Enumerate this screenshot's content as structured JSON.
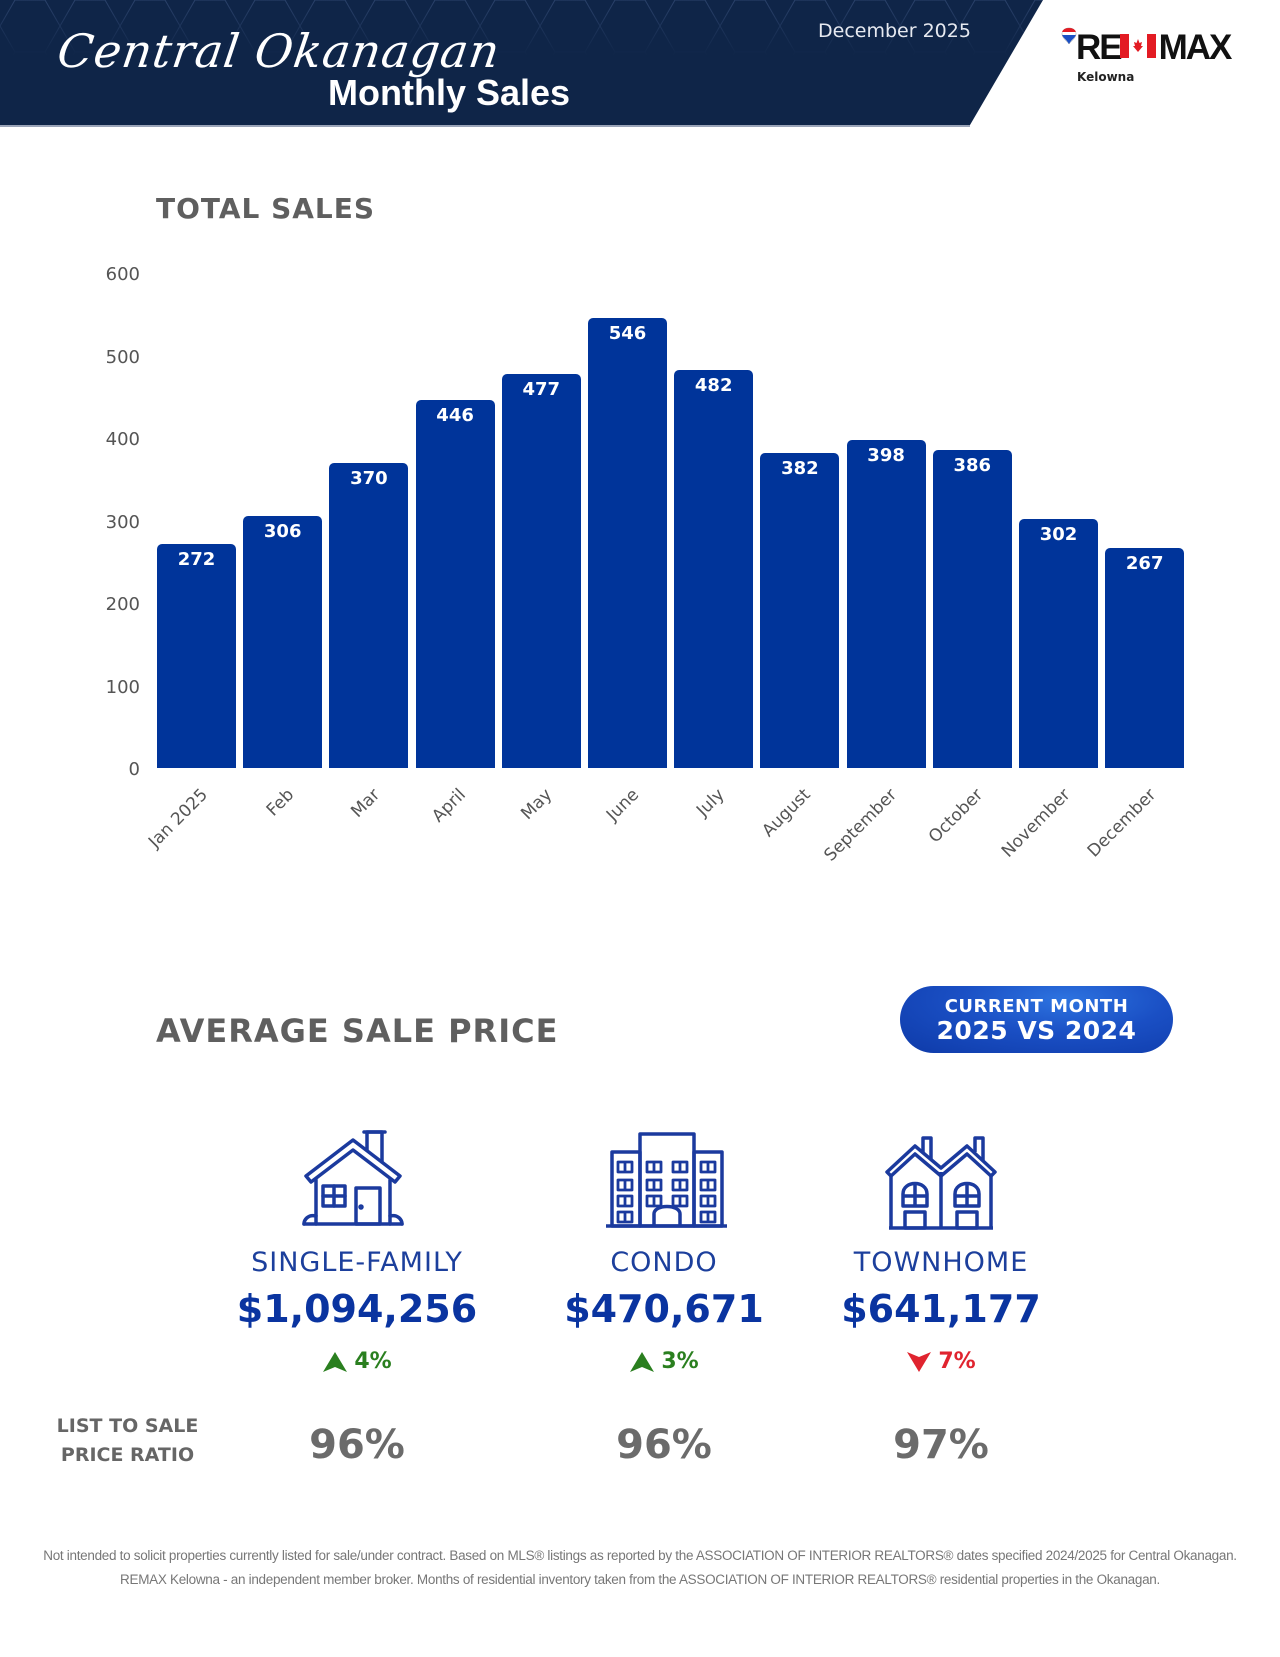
{
  "header": {
    "region_script": "Central Okanagan",
    "title": "Monthly Sales",
    "date": "December 2025",
    "brand": {
      "name": "RE/MAX",
      "logo_text_left": "RE",
      "logo_text_right": "MAX",
      "office": "Kelowna"
    },
    "colors": {
      "banner": "#0f2548",
      "accent": "#00349a"
    }
  },
  "total_sales": {
    "title": "TOTAL SALES"
  },
  "chart_data": {
    "type": "bar",
    "title": "TOTAL SALES",
    "categories": [
      "Jan 2025",
      "Feb",
      "Mar",
      "April",
      "May",
      "June",
      "July",
      "August",
      "September",
      "October",
      "November",
      "December"
    ],
    "values": [
      272,
      306,
      370,
      446,
      477,
      546,
      482,
      382,
      398,
      386,
      302,
      267
    ],
    "xlabel": "",
    "ylabel": "",
    "ylim": [
      0,
      600
    ],
    "yticks": [
      0,
      100,
      200,
      300,
      400,
      500,
      600
    ],
    "grid": false,
    "data_labels": true,
    "bar_color": "#00349a"
  },
  "average_sale_price": {
    "title": "AVERAGE SALE PRICE",
    "badge_line1": "CURRENT MONTH",
    "badge_line2": "2025 VS 2024",
    "categories": [
      {
        "name": "SINGLE-FAMILY",
        "icon": "house-icon",
        "price": "$1,094,256",
        "change": "4%",
        "direction": "up",
        "ratio": "96%"
      },
      {
        "name": "CONDO",
        "icon": "apartment-building-icon",
        "price": "$470,671",
        "change": "3%",
        "direction": "up",
        "ratio": "96%"
      },
      {
        "name": "TOWNHOME",
        "icon": "townhouse-icon",
        "price": "$641,177",
        "change": "7%",
        "direction": "down",
        "ratio": "97%"
      }
    ],
    "ratio_label_line1": "LIST TO SALE",
    "ratio_label_line2": "PRICE RATIO",
    "colors": {
      "up": "#2a7f1f",
      "down": "#e0242f"
    }
  },
  "footer": {
    "line1": "Not intended to solicit properties currently listed for sale/under contract. Based on MLS® listings as reported by the ASSOCIATION OF INTERIOR REALTORS® dates specified 2024/2025 for Central Okanagan.",
    "line2": "REMAX Kelowna - an independent member broker. Months of residential inventory taken from the ASSOCIATION OF INTERIOR REALTORS® residential properties in the Okanagan."
  }
}
